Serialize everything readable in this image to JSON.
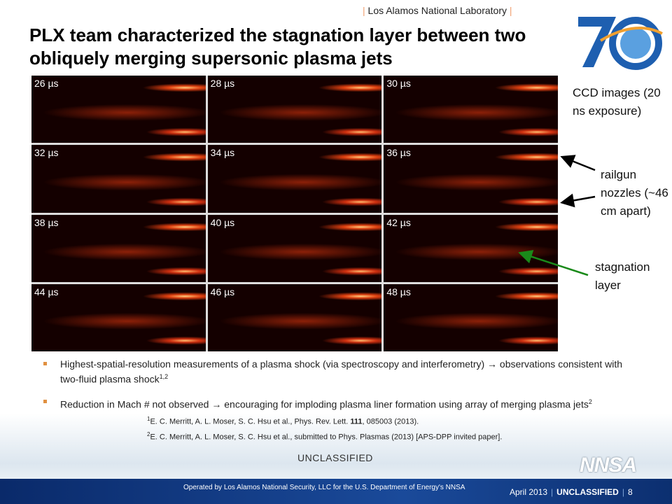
{
  "header": {
    "lab": "Los Alamos National Laboratory",
    "title": "PLX team characterized the stagnation layer between two obliquely merging supersonic plasma jets"
  },
  "panels": [
    "26 µs",
    "28 µs",
    "30 µs",
    "32 µs",
    "34 µs",
    "36 µs",
    "38 µs",
    "40 µs",
    "42 µs",
    "44 µs",
    "46 µs",
    "48 µs"
  ],
  "annotations": {
    "ccd": "CCD images (20 ns exposure)",
    "nozzles": "railgun nozzles (~46 cm apart)",
    "stagnation": "stagnation layer"
  },
  "bullets": [
    {
      "text": "Highest-spatial-resolution measurements of a plasma shock (via spectroscopy and interferometry) → observations consistent with two-fluid plasma shock",
      "sup": "1,2"
    },
    {
      "text": "Reduction in Mach # not observed → encouraging for imploding plasma liner formation using array of merging plasma jets",
      "sup": "2"
    }
  ],
  "references": [
    {
      "num": "1",
      "before": "E. C. Merritt, A. L. Moser, S. C. Hsu et al., Phys. Rev. Lett. ",
      "bold": "111",
      "after": ", 085003 (2013)."
    },
    {
      "num": "2",
      "before": "E. C. Merritt, A. L. Moser, S. C. Hsu et al., submitted to Phys. Plasmas (2013) [APS-DPP invited paper].",
      "bold": "",
      "after": ""
    }
  ],
  "classification": "UNCLASSIFIED",
  "footer": {
    "operator": "Operated by Los Alamos National Security, LLC for the U.S. Department of Energy's NNSA",
    "date": "April 2013",
    "classification": "UNCLASSIFIED",
    "page": "8",
    "logo": "NNSA"
  }
}
